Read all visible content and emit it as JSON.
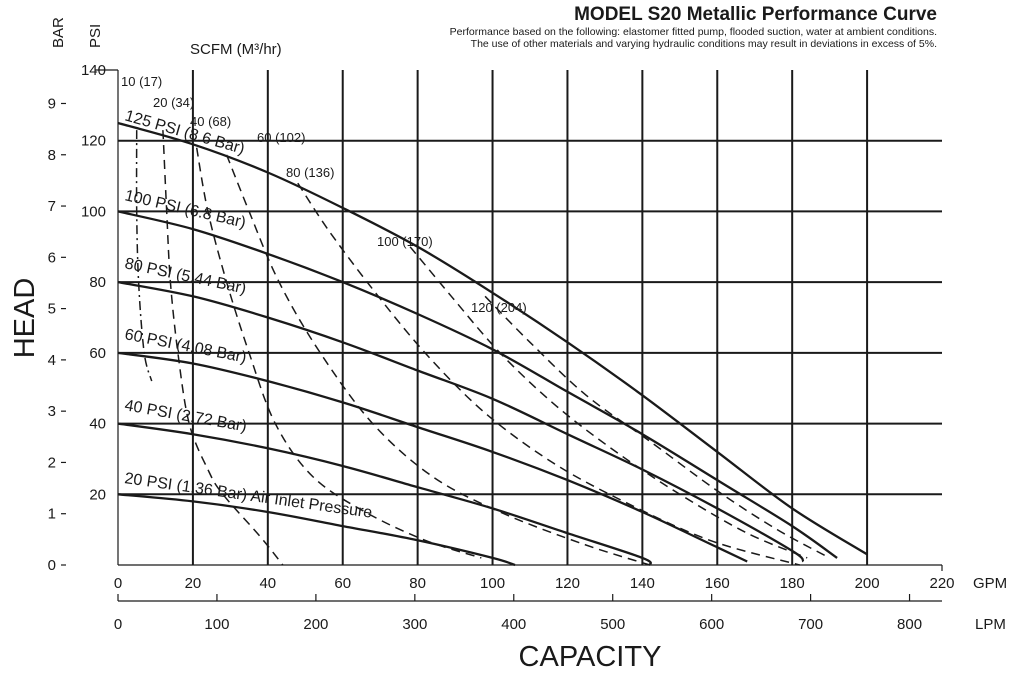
{
  "chart_data": {
    "type": "line",
    "title": "MODEL S20 Metallic Performance Curve",
    "subtitle_lines": [
      "Performance based on the following: elastomer fitted pump, flooded suction, water at ambient conditions.",
      "The use of other materials and varying hydraulic conditions may result in deviations in excess of 5%."
    ],
    "xlabel": "CAPACITY",
    "ylabel": "HEAD",
    "air_unit_label": "SCFM (M³/hr)",
    "x_axis": {
      "unit": "GPM",
      "range": [
        0,
        220
      ],
      "ticks": [
        0,
        20,
        40,
        60,
        80,
        100,
        120,
        140,
        160,
        180,
        200,
        220
      ]
    },
    "x_axis_secondary": {
      "unit": "LPM",
      "range": [
        0,
        832.8
      ],
      "ticks": [
        0,
        100,
        200,
        300,
        400,
        500,
        600,
        700,
        800
      ]
    },
    "y_axis": {
      "unit": "PSI",
      "range": [
        0,
        140
      ],
      "ticks": [
        20,
        40,
        60,
        80,
        100,
        120,
        140
      ],
      "grid_values": [
        20,
        40,
        60,
        80,
        100,
        120
      ]
    },
    "y_axis_secondary": {
      "unit": "BAR",
      "range": [
        0,
        9.653
      ],
      "ticks": [
        0,
        1,
        2,
        3,
        4,
        5,
        6,
        7,
        8,
        9
      ]
    },
    "grid": true,
    "series": [
      {
        "name": "125 PSI (8.6 Bar)",
        "x": [
          0,
          20,
          40,
          60,
          80,
          100,
          120,
          140,
          160,
          180,
          200
        ],
        "y": [
          125,
          119,
          111,
          101,
          90,
          77,
          63,
          48,
          32,
          16,
          3
        ]
      },
      {
        "name": "100 PSI (6.8 Bar)",
        "x": [
          0,
          20,
          40,
          60,
          80,
          100,
          120,
          140,
          160,
          180,
          192
        ],
        "y": [
          100,
          95,
          88,
          80,
          71,
          61,
          49,
          37,
          24,
          11,
          2
        ]
      },
      {
        "name": "80 PSI (5.44 Bar)",
        "x": [
          0,
          20,
          40,
          60,
          80,
          100,
          120,
          140,
          160,
          180,
          183
        ],
        "y": [
          80,
          76,
          70,
          63,
          55,
          47,
          37,
          27,
          16,
          4,
          1
        ]
      },
      {
        "name": "60 PSI (4.08 Bar)",
        "x": [
          0,
          20,
          40,
          60,
          80,
          100,
          120,
          140,
          160,
          168
        ],
        "y": [
          60,
          57,
          52,
          46,
          39,
          32,
          24,
          15,
          5,
          1
        ]
      },
      {
        "name": "40 PSI (2.72 Bar)",
        "x": [
          0,
          20,
          40,
          60,
          80,
          100,
          120,
          140,
          142
        ],
        "y": [
          40,
          37,
          33,
          28,
          22,
          16,
          9,
          2,
          0
        ]
      },
      {
        "name": "20 PSI (1.36 Bar) Air Inlet Pressure",
        "x": [
          0,
          20,
          40,
          60,
          80,
          100,
          106
        ],
        "y": [
          20,
          18,
          15,
          11,
          7,
          2,
          0
        ]
      }
    ],
    "air_consumption_lines": [
      {
        "name": "10 (17)",
        "x": [
          5,
          5,
          5.5,
          7,
          9
        ],
        "y": [
          123,
          100,
          80,
          60,
          52
        ]
      },
      {
        "name": "20 (34)",
        "x": [
          12,
          13,
          14,
          16,
          19,
          24,
          28,
          38,
          44
        ],
        "y": [
          123,
          100,
          80,
          60,
          40,
          27,
          20,
          8,
          0
        ]
      },
      {
        "name": "40 (68)",
        "x": [
          21,
          24,
          29,
          35,
          42,
          52,
          66,
          82,
          97
        ],
        "y": [
          118,
          100,
          80,
          60,
          40,
          25,
          15,
          7,
          2
        ]
      },
      {
        "name": "60 (102)",
        "x": [
          29,
          35,
          43,
          54,
          68,
          84,
          102,
          124,
          142
        ],
        "y": [
          116,
          100,
          80,
          60,
          40,
          25,
          15,
          6,
          0
        ]
      },
      {
        "name": "80 (136)",
        "x": [
          48,
          56,
          68,
          82,
          98,
          116,
          135,
          158,
          182
        ],
        "y": [
          108,
          95,
          78,
          60,
          43,
          29,
          18,
          7,
          0
        ]
      },
      {
        "name": "100 (170)",
        "x": [
          78,
          89,
          102,
          117,
          133,
          150,
          168,
          184
        ],
        "y": [
          90,
          76,
          60,
          45,
          32,
          20,
          9,
          2
        ]
      },
      {
        "name": "120 (204)",
        "x": [
          98,
          110,
          125,
          142,
          160,
          176,
          190
        ],
        "y": [
          76,
          63,
          48,
          35,
          21,
          10,
          2
        ]
      }
    ]
  }
}
